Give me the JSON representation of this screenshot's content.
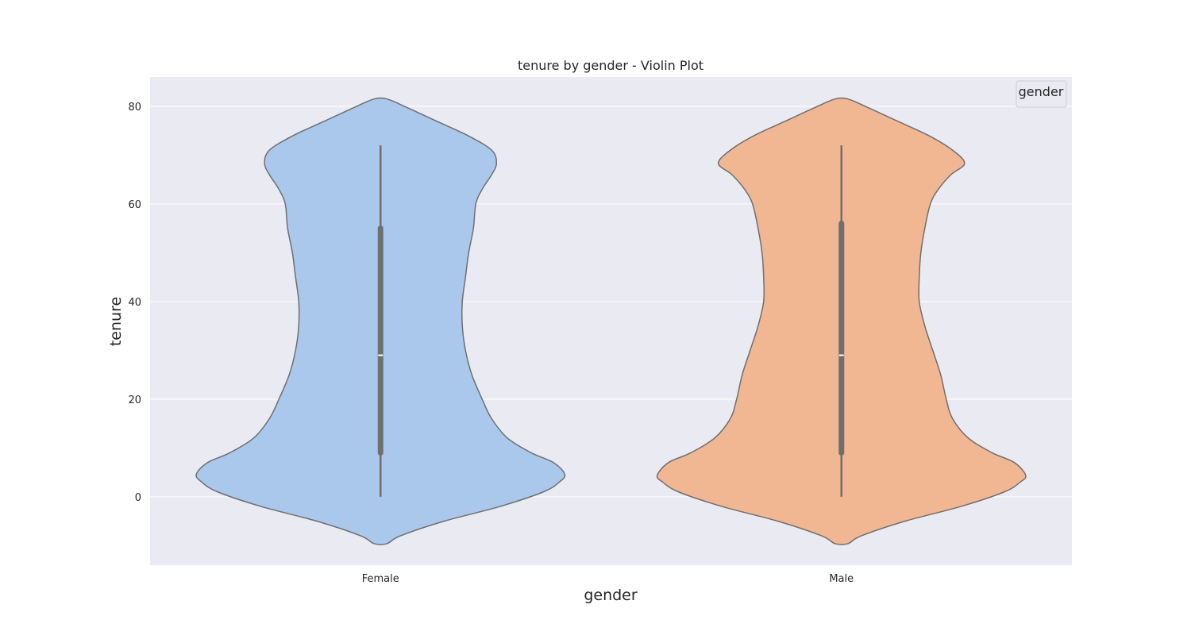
{
  "chart_data": {
    "type": "violin",
    "title": "tenure by gender - Violin Plot",
    "xlabel": "gender",
    "ylabel": "tenure",
    "categories": [
      "Female",
      "Male"
    ],
    "ylim": [
      -14,
      86
    ],
    "yticks": [
      0,
      20,
      40,
      60,
      80
    ],
    "grid": true,
    "legend": {
      "title": "gender",
      "placement": "top-right"
    },
    "colors": {
      "plot_background": "#eaeaf2",
      "grid": "#ffffff",
      "outline": "#6f6f6f",
      "box": "#6f6f6f",
      "median": "#ffffff",
      "Female": "#aac8ec",
      "Male": "#f0b792"
    },
    "violins": [
      {
        "category": "Female",
        "min": 0,
        "q1": 9,
        "median": 29,
        "q3": 55,
        "max": 72,
        "density_y": [
          -9.6,
          -8,
          -5,
          -2,
          1,
          3,
          4.6,
          7,
          9,
          12,
          16,
          20,
          25,
          30,
          35,
          40,
          45,
          50,
          55,
          60,
          63,
          66,
          68.3,
          71,
          74,
          77,
          80,
          81.5
        ],
        "density_halfwidth": [
          8,
          25,
          80,
          150,
          205,
          225,
          232,
          218,
          190,
          160,
          140,
          128,
          115,
          107,
          103,
          103,
          107,
          111,
          117,
          120,
          128,
          140,
          146,
          140,
          110,
          70,
          30,
          8
        ]
      },
      {
        "category": "Male",
        "min": 0,
        "q1": 9,
        "median": 29,
        "q3": 56,
        "max": 72,
        "density_y": [
          -9.6,
          -8,
          -5,
          -2,
          1,
          3,
          4.4,
          7,
          9,
          12,
          16,
          20,
          25,
          30,
          35,
          40,
          45,
          50,
          55,
          60,
          63,
          66,
          68.3,
          71,
          74,
          77,
          80,
          81.5
        ],
        "density_halfwidth": [
          8,
          25,
          80,
          150,
          205,
          225,
          232,
          218,
          190,
          160,
          140,
          132,
          125,
          115,
          105,
          98,
          98,
          100,
          105,
          112,
          122,
          138,
          155,
          140,
          110,
          70,
          30,
          8
        ]
      }
    ]
  }
}
